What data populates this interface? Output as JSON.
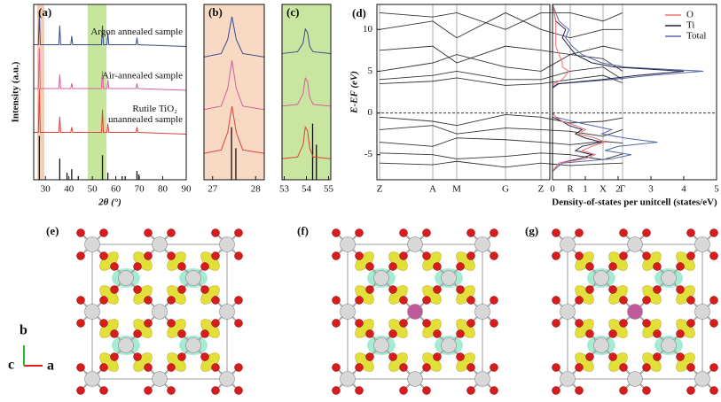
{
  "chart_data": [
    {
      "type": "line",
      "title": "(a)",
      "xlabel": "2θ (°)",
      "ylabel": "Intensity (a.u.)",
      "xlim": [
        25,
        90
      ],
      "xticks": [
        30,
        40,
        50,
        60,
        70,
        80,
        90
      ],
      "ylim": [
        0,
        100
      ],
      "spans": [
        {
          "from": 26.5,
          "to": 29.5,
          "color": "#f6cdb4"
        },
        {
          "from": 48,
          "to": 56,
          "color": "#c6e69c"
        }
      ],
      "x": [
        25,
        27.0,
        27.4,
        27.8,
        35.7,
        36.1,
        36.5,
        40.8,
        41.2,
        41.6,
        53.9,
        54.3,
        54.7,
        56.2,
        56.6,
        57.0,
        68.6,
        69.0,
        69.4,
        90
      ],
      "series": [
        {
          "name": "Argon annealed sample",
          "color": "#3a4a8c",
          "values": [
            77,
            77,
            95,
            77,
            77,
            88,
            77,
            77,
            82,
            77,
            77,
            88,
            77,
            77,
            84,
            77,
            77,
            81,
            77,
            76
          ]
        },
        {
          "name": "Air-annealed sample",
          "color": "#d6609a",
          "values": [
            52,
            52,
            75,
            52,
            52,
            60,
            52,
            52,
            55,
            52,
            52,
            62,
            52,
            52,
            57,
            52,
            52,
            55,
            52,
            51
          ]
        },
        {
          "name": "unannealed sample",
          "color": "#e0403a",
          "values": [
            27,
            27,
            52,
            27,
            27,
            36,
            27,
            27,
            30,
            27,
            27,
            40,
            27,
            27,
            32,
            27,
            27,
            30,
            27,
            26
          ]
        }
      ],
      "reference": {
        "name": "Rutile TiO₂",
        "color": "#111111",
        "x": [
          27.4,
          36.1,
          39.2,
          41.2,
          44.0,
          54.3,
          56.6,
          62.7,
          64.0,
          69.0,
          69.8
        ],
        "values": [
          25,
          12,
          4,
          6,
          2,
          14,
          4,
          2,
          2,
          5,
          3
        ]
      }
    },
    {
      "type": "line",
      "title": "(b)",
      "background": "#f7d9c4",
      "xlim": [
        26.8,
        28.2
      ],
      "xticks": [
        27,
        28
      ],
      "ylim": [
        0,
        100
      ],
      "x": [
        26.8,
        27.2,
        27.35,
        27.45,
        27.55,
        27.7,
        28.2
      ],
      "series": [
        {
          "color": "#3a4a8c",
          "values": [
            70,
            72,
            80,
            93,
            80,
            72,
            70
          ]
        },
        {
          "color": "#d6609a",
          "values": [
            40,
            42,
            52,
            68,
            52,
            42,
            40
          ]
        },
        {
          "color": "#e0403a",
          "values": [
            15,
            17,
            27,
            42,
            27,
            17,
            15
          ]
        }
      ],
      "reference": {
        "color": "#111111",
        "x": [
          27.44,
          27.54
        ],
        "values": [
          30,
          18
        ]
      }
    },
    {
      "type": "line",
      "title": "(c)",
      "background": "#c8e6a0",
      "xlim": [
        52.9,
        55.1
      ],
      "xticks": [
        53,
        54,
        55
      ],
      "ylim": [
        0,
        100
      ],
      "x": [
        52.9,
        53.6,
        53.85,
        53.95,
        54.05,
        54.15,
        54.3,
        55.1
      ],
      "series": [
        {
          "color": "#3a4a8c",
          "values": [
            72,
            73,
            78,
            86,
            84,
            76,
            73,
            72
          ]
        },
        {
          "color": "#d6609a",
          "values": [
            42,
            43,
            49,
            58,
            56,
            47,
            43,
            42
          ]
        },
        {
          "color": "#e0403a",
          "values": [
            12,
            13,
            20,
            30,
            28,
            18,
            13,
            12
          ]
        }
      ],
      "reference": {
        "color": "#111111",
        "x": [
          54.28,
          54.45
        ],
        "values": [
          32,
          20
        ]
      }
    },
    {
      "type": "band",
      "title": "(d)",
      "ylabel": "E-EF (eV)",
      "categories": [
        "Z",
        "A",
        "M",
        "G",
        "Z",
        "R",
        "X",
        "Γ"
      ],
      "ylim": [
        -8,
        13
      ],
      "yticks": [
        -5,
        0,
        5,
        10
      ],
      "fermi_level": 0,
      "series": [
        {
          "color": "#333333",
          "values": [
            3.5,
            3.8,
            4.2,
            3.3,
            3.5,
            4,
            4.5,
            3.6
          ]
        },
        {
          "color": "#333333",
          "values": [
            4,
            4.5,
            5,
            4,
            4,
            5,
            5.5,
            4
          ]
        },
        {
          "color": "#333333",
          "values": [
            5,
            6,
            7,
            5.5,
            5,
            7,
            6.5,
            5
          ]
        },
        {
          "color": "#333333",
          "values": [
            7.5,
            8,
            6,
            8,
            7.5,
            7,
            8,
            7.5
          ]
        },
        {
          "color": "#333333",
          "values": [
            10,
            11,
            9,
            12,
            10,
            9,
            10,
            10
          ]
        },
        {
          "color": "#333333",
          "values": [
            12,
            11.5,
            12,
            10,
            12,
            12,
            11,
            12
          ]
        },
        {
          "color": "#333333",
          "values": [
            -0.5,
            -1,
            -1.5,
            -0.2,
            -0.5,
            -1.2,
            -1,
            -0.6
          ]
        },
        {
          "color": "#333333",
          "values": [
            -2,
            -1.5,
            -2.5,
            -1.8,
            -2,
            -2.2,
            -2.8,
            -2
          ]
        },
        {
          "color": "#333333",
          "values": [
            -3.5,
            -4,
            -3,
            -3.2,
            -3.5,
            -3.8,
            -3.4,
            -3.6
          ]
        },
        {
          "color": "#333333",
          "values": [
            -4.8,
            -5,
            -5.5,
            -5.2,
            -4.8,
            -5,
            -5.6,
            -4.9
          ]
        },
        {
          "color": "#333333",
          "values": [
            -6,
            -6.2,
            -5.8,
            -6.5,
            -6,
            -6.3,
            -6.1,
            -6
          ]
        }
      ]
    },
    {
      "type": "dos",
      "xlabel": "Density-of-states per unitcell (states/eV)",
      "xlim": [
        0,
        5
      ],
      "xticks": [
        0,
        1,
        2,
        3,
        4,
        5
      ],
      "ylim": [
        -8,
        13
      ],
      "fermi_level": 0,
      "legend": "upper right",
      "y": [
        -7,
        -6,
        -5.5,
        -5,
        -4.5,
        -4,
        -3.5,
        -3,
        -2.5,
        -2,
        -1.5,
        -1,
        -0.5,
        0,
        1,
        2,
        3,
        3.5,
        4,
        4.5,
        5,
        5.5,
        6,
        7,
        8,
        9,
        10,
        11,
        12,
        13
      ],
      "series": [
        {
          "name": "O",
          "color": "#f07070",
          "values": [
            0,
            0.2,
            1.0,
            1.3,
            0.9,
            1.2,
            1.6,
            1.3,
            0.8,
            1.0,
            0.7,
            0.3,
            0.1,
            0,
            0,
            0,
            0,
            0.05,
            0.3,
            0.4,
            0.5,
            0.3,
            0.3,
            0.2,
            0.1,
            0.1,
            0.1,
            0.1,
            0.05,
            0
          ]
        },
        {
          "name": "Ti",
          "color": "#222244",
          "values": [
            0,
            0.2,
            0.8,
            1.2,
            0.7,
            0.9,
            1.5,
            1.0,
            0.7,
            0.9,
            0.5,
            0.3,
            0,
            0,
            0,
            0,
            0,
            0.15,
            1.5,
            2.6,
            4.0,
            1.9,
            1.2,
            0.7,
            0.5,
            0.3,
            0.4,
            0.1,
            0.05,
            0
          ]
        },
        {
          "name": "Total",
          "color": "#5566aa",
          "values": [
            0,
            0.3,
            1.8,
            2.4,
            1.6,
            2.0,
            3.2,
            2.2,
            1.5,
            1.8,
            1.2,
            0.6,
            0.1,
            0,
            0,
            0,
            0,
            0.2,
            1.8,
            3.0,
            4.6,
            2.2,
            1.5,
            0.9,
            0.6,
            0.4,
            0.5,
            0.2,
            0.1,
            0
          ]
        }
      ]
    }
  ],
  "structures": {
    "labels": [
      "(e)",
      "(f)",
      "(g)"
    ],
    "axes": [
      "b",
      "c",
      "a"
    ]
  }
}
